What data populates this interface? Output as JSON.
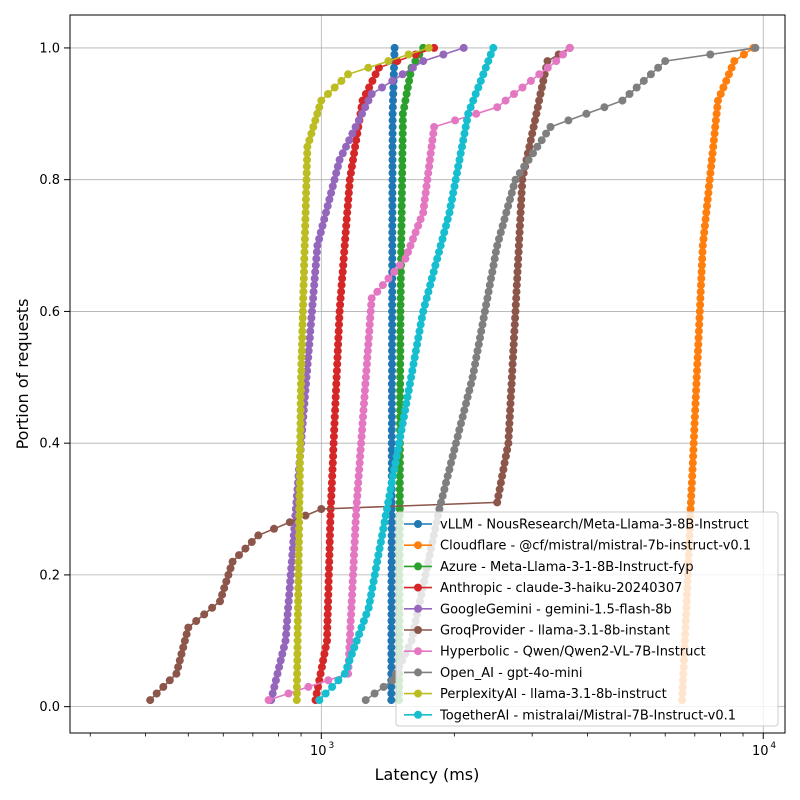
{
  "chart_data": {
    "type": "line",
    "xlabel": "Latency (ms)",
    "ylabel": "Portion of requests",
    "xscale": "log",
    "xlim": [
      270,
      11200
    ],
    "ylim": [
      -0.04,
      1.05
    ],
    "grid": true,
    "legend_position": "bottom-right",
    "x_ticks": [
      {
        "value": 1000,
        "base": "10",
        "exp": "3"
      },
      {
        "value": 10000,
        "base": "10",
        "exp": "4"
      }
    ],
    "y_ticks": [
      {
        "value": 0.0,
        "label": "0.0"
      },
      {
        "value": 0.2,
        "label": "0.2"
      },
      {
        "value": 0.4,
        "label": "0.4"
      },
      {
        "value": 0.6,
        "label": "0.6"
      },
      {
        "value": 0.8,
        "label": "0.8"
      },
      {
        "value": 1.0,
        "label": "1.0"
      }
    ],
    "series": [
      {
        "name": "vLLM - NousResearch/Meta-Llama-3-8B-Instruct",
        "color": "#1f77b4",
        "knots": [
          [
            1440,
            0.01
          ],
          [
            1445,
            0.5
          ],
          [
            1450,
            0.9
          ],
          [
            1465,
            1.0
          ]
        ]
      },
      {
        "name": "Cloudflare - @cf/mistral/mistral-7b-instruct-v0.1",
        "color": "#ff7f0e",
        "knots": [
          [
            6550,
            0.01
          ],
          [
            6650,
            0.1
          ],
          [
            6850,
            0.3
          ],
          [
            7300,
            0.7
          ],
          [
            7900,
            0.92
          ],
          [
            8600,
            0.98
          ],
          [
            9500,
            1.0
          ]
        ]
      },
      {
        "name": "Azure - Meta-Llama-3-1-8B-Instruct-fyp",
        "color": "#2ca02c",
        "knots": [
          [
            1500,
            0.01
          ],
          [
            1510,
            0.6
          ],
          [
            1530,
            0.9
          ],
          [
            1600,
            0.97
          ],
          [
            1700,
            1.0
          ]
        ]
      },
      {
        "name": "Anthropic - claude-3-haiku-20240307",
        "color": "#d62728",
        "knots": [
          [
            970,
            0.01
          ],
          [
            1030,
            0.1
          ],
          [
            1050,
            0.3
          ],
          [
            1100,
            0.6
          ],
          [
            1160,
            0.8
          ],
          [
            1240,
            0.92
          ],
          [
            1350,
            0.97
          ],
          [
            1800,
            1.0
          ]
        ]
      },
      {
        "name": "GoogleGemini - gemini-1.5-flash-8b",
        "color": "#9467bd",
        "knots": [
          [
            770,
            0.01
          ],
          [
            830,
            0.1
          ],
          [
            900,
            0.4
          ],
          [
            980,
            0.7
          ],
          [
            1100,
            0.83
          ],
          [
            1300,
            0.93
          ],
          [
            1700,
            0.98
          ],
          [
            2100,
            1.0
          ]
        ]
      },
      {
        "name": "GroqProvider - llama-3.1-8b-instant",
        "color": "#8c564b",
        "knots": [
          [
            410,
            0.01
          ],
          [
            470,
            0.05
          ],
          [
            500,
            0.12
          ],
          [
            590,
            0.16
          ],
          [
            630,
            0.22
          ],
          [
            720,
            0.26
          ],
          [
            1000,
            0.3
          ],
          [
            2500,
            0.31
          ],
          [
            2650,
            0.4
          ],
          [
            2750,
            0.6
          ],
          [
            2850,
            0.8
          ],
          [
            3000,
            0.87
          ],
          [
            3250,
            0.98
          ],
          [
            3650,
            1.0
          ]
        ]
      },
      {
        "name": "Hyperbolic - Qwen/Qwen2-VL-7B-Instruct",
        "color": "#e377c2",
        "knots": [
          [
            760,
            0.01
          ],
          [
            1150,
            0.05
          ],
          [
            1200,
            0.3
          ],
          [
            1300,
            0.62
          ],
          [
            1550,
            0.68
          ],
          [
            1700,
            0.75
          ],
          [
            1800,
            0.88
          ],
          [
            2500,
            0.91
          ],
          [
            3400,
            0.98
          ],
          [
            3650,
            1.0
          ]
        ]
      },
      {
        "name": "Open_AI - gpt-4o-mini",
        "color": "#7f7f7f",
        "knots": [
          [
            1260,
            0.01
          ],
          [
            1450,
            0.04
          ],
          [
            1600,
            0.1
          ],
          [
            1850,
            0.3
          ],
          [
            2200,
            0.5
          ],
          [
            2500,
            0.7
          ],
          [
            2750,
            0.8
          ],
          [
            3300,
            0.88
          ],
          [
            4800,
            0.92
          ],
          [
            6000,
            0.98
          ],
          [
            9600,
            1.0
          ]
        ]
      },
      {
        "name": "PerplexityAI - llama-3.1-8b-instruct",
        "color": "#bcbd22",
        "knots": [
          [
            880,
            0.01
          ],
          [
            900,
            0.5
          ],
          [
            930,
            0.85
          ],
          [
            1000,
            0.92
          ],
          [
            1150,
            0.96
          ],
          [
            1750,
            1.0
          ]
        ]
      },
      {
        "name": "TogetherAI - mistralai/Mistral-7B-Instruct-v0.1",
        "color": "#17becf",
        "knots": [
          [
            990,
            0.01
          ],
          [
            1130,
            0.05
          ],
          [
            1280,
            0.15
          ],
          [
            1500,
            0.4
          ],
          [
            1700,
            0.6
          ],
          [
            1950,
            0.75
          ],
          [
            2150,
            0.9
          ],
          [
            2450,
            1.0
          ]
        ]
      }
    ]
  }
}
